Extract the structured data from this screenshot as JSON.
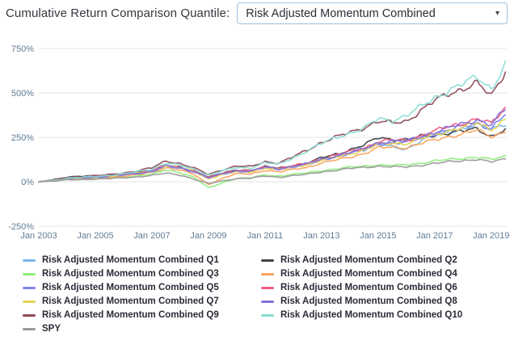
{
  "header": {
    "label": "Cumulative Return Comparison Quantile:",
    "dropdown_value": "Risk Adjusted Momentum Combined",
    "dropdown_caret": "▾"
  },
  "chart_data": {
    "type": "line",
    "title": "",
    "xlabel": "",
    "ylabel": "",
    "xlim": [
      2003,
      2019.55
    ],
    "ylim": [
      -250,
      750
    ],
    "grid": "horizontal",
    "grid_color": "#e6e6e6",
    "axis_color": "#5f7c96",
    "legend_position": "bottom",
    "xticks": {
      "values": [
        2003,
        2005,
        2007,
        2009,
        2011,
        2013,
        2015,
        2017,
        2019
      ],
      "labels": [
        "Jan 2003",
        "Jan 2005",
        "Jan 2007",
        "Jan 2009",
        "Jan 2011",
        "Jan 2013",
        "Jan 2015",
        "Jan 2017",
        "Jan 2019"
      ]
    },
    "yticks": {
      "values": [
        750,
        500,
        250,
        0,
        -250
      ],
      "labels": [
        "750%",
        "500%",
        "250%",
        "0%",
        "-250%"
      ]
    },
    "x": [
      2003,
      2003.5,
      2004,
      2004.5,
      2005,
      2005.5,
      2006,
      2006.5,
      2007,
      2007.5,
      2008,
      2008.5,
      2009,
      2009.5,
      2010,
      2010.5,
      2011,
      2011.5,
      2012,
      2012.5,
      2013,
      2013.5,
      2014,
      2014.5,
      2015,
      2015.5,
      2016,
      2016.5,
      2017,
      2017.5,
      2018,
      2018.5,
      2019,
      2019.5
    ],
    "y_unit": "%",
    "series": [
      {
        "id": "q1",
        "name": "Risk Adjusted Momentum Combined Q1",
        "color": "#7cb5ec",
        "values": [
          0,
          8,
          20,
          24,
          29,
          34,
          41,
          49,
          60,
          90,
          77,
          56,
          20,
          43,
          61,
          59,
          81,
          70,
          86,
          99,
          123,
          142,
          162,
          182,
          215,
          195,
          185,
          230,
          258,
          280,
          300,
          320,
          295,
          330
        ]
      },
      {
        "id": "q2",
        "name": "Risk Adjusted Momentum Combined Q2",
        "color": "#434348",
        "values": [
          0,
          12,
          26,
          30,
          34,
          38,
          44,
          52,
          64,
          92,
          80,
          62,
          28,
          48,
          66,
          64,
          85,
          76,
          90,
          104,
          135,
          155,
          180,
          205,
          250,
          240,
          235,
          255,
          262,
          275,
          285,
          300,
          255,
          292
        ]
      },
      {
        "id": "q3",
        "name": "Risk Adjusted Momentum Combined Q3",
        "color": "#90ed7d",
        "values": [
          0,
          5,
          12,
          14,
          18,
          22,
          27,
          33,
          42,
          66,
          52,
          25,
          -35,
          -5,
          20,
          22,
          38,
          32,
          42,
          50,
          62,
          72,
          82,
          88,
          95,
          92,
          95,
          105,
          118,
          125,
          132,
          140,
          125,
          142
        ]
      },
      {
        "id": "q4",
        "name": "Risk Adjusted Momentum Combined Q4",
        "color": "#f7a35c",
        "values": [
          0,
          6,
          15,
          18,
          22,
          26,
          32,
          40,
          52,
          80,
          66,
          40,
          -15,
          20,
          45,
          44,
          65,
          55,
          70,
          82,
          105,
          122,
          140,
          158,
          190,
          195,
          192,
          215,
          235,
          255,
          270,
          290,
          255,
          282
        ]
      },
      {
        "id": "q5",
        "name": "Risk Adjusted Momentum Combined Q5",
        "color": "#8085e9",
        "values": [
          0,
          7,
          17,
          21,
          26,
          31,
          38,
          46,
          58,
          88,
          75,
          55,
          20,
          42,
          60,
          58,
          80,
          70,
          85,
          98,
          122,
          140,
          160,
          178,
          212,
          220,
          220,
          245,
          270,
          292,
          310,
          330,
          300,
          378
        ]
      },
      {
        "id": "q6",
        "name": "Risk Adjusted Momentum Combined Q6",
        "color": "#f15c80",
        "values": [
          0,
          8,
          19,
          23,
          28,
          33,
          40,
          50,
          62,
          95,
          82,
          60,
          25,
          48,
          65,
          62,
          85,
          75,
          90,
          105,
          130,
          150,
          170,
          190,
          225,
          235,
          230,
          260,
          285,
          310,
          330,
          355,
          325,
          420
        ]
      },
      {
        "id": "q7",
        "name": "Risk Adjusted Momentum Combined Q7",
        "color": "#e4d354",
        "values": [
          0,
          8,
          18,
          22,
          27,
          32,
          39,
          47,
          59,
          92,
          78,
          57,
          18,
          40,
          58,
          56,
          78,
          68,
          84,
          97,
          120,
          138,
          158,
          176,
          210,
          218,
          215,
          240,
          265,
          288,
          305,
          330,
          295,
          352
        ]
      },
      {
        "id": "q8",
        "name": "Risk Adjusted Momentum Combined Q8",
        "color": "#8570dd",
        "values": [
          0,
          7,
          18,
          22,
          27,
          32,
          39,
          48,
          60,
          90,
          78,
          58,
          22,
          45,
          62,
          60,
          82,
          72,
          88,
          102,
          126,
          146,
          165,
          185,
          220,
          230,
          228,
          255,
          280,
          305,
          325,
          350,
          320,
          408
        ]
      },
      {
        "id": "q9",
        "name": "Risk Adjusted Momentum Combined Q9",
        "color": "#8e4a57",
        "values": [
          0,
          10,
          24,
          28,
          34,
          40,
          50,
          62,
          78,
          118,
          102,
          76,
          42,
          68,
          88,
          85,
          114,
          105,
          140,
          180,
          222,
          250,
          278,
          305,
          340,
          330,
          341,
          400,
          455,
          495,
          525,
          555,
          480,
          625
        ]
      },
      {
        "id": "q10",
        "name": "Risk Adjusted Momentum Combined Q10",
        "color": "#8adcd3",
        "values": [
          0,
          8,
          20,
          24,
          30,
          36,
          45,
          58,
          72,
          105,
          92,
          70,
          38,
          62,
          80,
          78,
          108,
          98,
          135,
          175,
          215,
          248,
          275,
          300,
          355,
          345,
          373,
          420,
          473,
          515,
          550,
          590,
          525,
          655
        ]
      },
      {
        "id": "spy",
        "name": "SPY",
        "color": "#9a9a9a",
        "values": [
          0,
          4,
          10,
          12,
          15,
          18,
          22,
          28,
          36,
          48,
          38,
          15,
          -10,
          5,
          18,
          20,
          32,
          26,
          35,
          42,
          55,
          65,
          75,
          80,
          88,
          85,
          82,
          92,
          105,
          112,
          118,
          128,
          112,
          126
        ]
      }
    ]
  }
}
